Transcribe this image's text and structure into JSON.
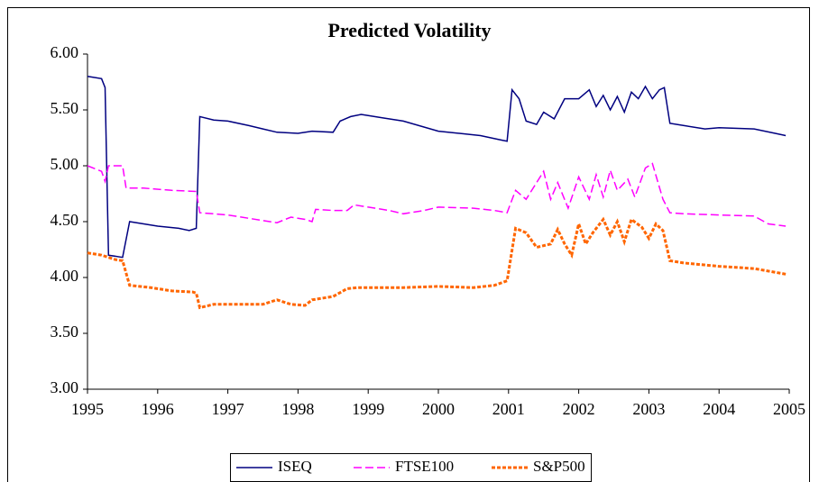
{
  "chart_data": {
    "type": "line",
    "title": "Predicted Volatility",
    "xlim": [
      1995,
      2005
    ],
    "xticks": [
      1995,
      1996,
      1997,
      1998,
      1999,
      2000,
      2001,
      2002,
      2003,
      2004,
      2005
    ],
    "ylim": [
      3,
      6
    ],
    "yticks": [
      {
        "value": 3,
        "label": "3.00"
      },
      {
        "value": 3.5,
        "label": "3.50"
      },
      {
        "value": 4,
        "label": "4.00"
      },
      {
        "value": 4.5,
        "label": "4.50"
      },
      {
        "value": 5,
        "label": "5.00"
      },
      {
        "value": 5.5,
        "label": "5.50"
      },
      {
        "value": 6,
        "label": "6.00"
      }
    ],
    "legend": "bottom",
    "series": [
      {
        "name": "ISEQ",
        "color": "#000080",
        "dash": "solid",
        "x": [
          1995.0,
          1995.2,
          1995.25,
          1995.3,
          1995.5,
          1995.6,
          1996.0,
          1996.3,
          1996.45,
          1996.55,
          1996.6,
          1996.8,
          1997.0,
          1997.3,
          1997.5,
          1997.7,
          1998.0,
          1998.2,
          1998.5,
          1998.6,
          1998.75,
          1998.9,
          1999.2,
          1999.5,
          2000.0,
          2000.3,
          2000.6,
          2000.9,
          2000.98,
          2001.05,
          2001.15,
          2001.25,
          2001.4,
          2001.5,
          2001.65,
          2001.8,
          2002.0,
          2002.15,
          2002.25,
          2002.35,
          2002.45,
          2002.55,
          2002.65,
          2002.75,
          2002.85,
          2002.95,
          2003.05,
          2003.15,
          2003.22,
          2003.3,
          2003.5,
          2003.8,
          2004.0,
          2004.5,
          2004.8,
          2004.95
        ],
        "values": [
          5.8,
          5.78,
          5.7,
          4.2,
          4.18,
          4.5,
          4.46,
          4.44,
          4.42,
          4.44,
          5.44,
          5.41,
          5.4,
          5.36,
          5.33,
          5.3,
          5.29,
          5.31,
          5.3,
          5.4,
          5.44,
          5.46,
          5.43,
          5.4,
          5.31,
          5.29,
          5.27,
          5.23,
          5.22,
          5.68,
          5.6,
          5.4,
          5.37,
          5.48,
          5.42,
          5.6,
          5.6,
          5.68,
          5.53,
          5.63,
          5.5,
          5.62,
          5.48,
          5.66,
          5.6,
          5.71,
          5.6,
          5.68,
          5.7,
          5.38,
          5.36,
          5.33,
          5.34,
          5.33,
          5.29,
          5.27
        ]
      },
      {
        "name": "FTSE100",
        "color": "#ff00ff",
        "dash": "dashed",
        "x": [
          1995.0,
          1995.2,
          1995.25,
          1995.3,
          1995.5,
          1995.55,
          1995.8,
          1996.2,
          1996.55,
          1996.6,
          1997.0,
          1997.5,
          1997.7,
          1997.9,
          1998.1,
          1998.2,
          1998.25,
          1998.5,
          1998.7,
          1998.8,
          1999.0,
          1999.3,
          1999.5,
          1999.8,
          2000.0,
          2000.5,
          2000.8,
          2000.98,
          2001.1,
          2001.25,
          2001.5,
          2001.6,
          2001.7,
          2001.85,
          2002.0,
          2002.15,
          2002.25,
          2002.35,
          2002.45,
          2002.55,
          2002.7,
          2002.8,
          2002.95,
          2003.05,
          2003.2,
          2003.3,
          2003.5,
          2004.0,
          2004.5,
          2004.7,
          2004.95
        ],
        "values": [
          5.0,
          4.95,
          4.86,
          5.0,
          5.0,
          4.8,
          4.8,
          4.78,
          4.77,
          4.58,
          4.56,
          4.51,
          4.49,
          4.54,
          4.52,
          4.5,
          4.61,
          4.6,
          4.6,
          4.65,
          4.63,
          4.6,
          4.57,
          4.6,
          4.63,
          4.62,
          4.6,
          4.58,
          4.78,
          4.7,
          4.95,
          4.7,
          4.85,
          4.62,
          4.9,
          4.7,
          4.92,
          4.72,
          4.96,
          4.78,
          4.88,
          4.72,
          4.98,
          5.02,
          4.7,
          4.58,
          4.57,
          4.56,
          4.55,
          4.48,
          4.46
        ]
      },
      {
        "name": "S&P500",
        "color": "#ff6600",
        "dash": "dotted",
        "x": [
          1995.0,
          1995.2,
          1995.4,
          1995.5,
          1995.6,
          1995.9,
          1996.2,
          1996.5,
          1996.55,
          1996.6,
          1996.8,
          1997.0,
          1997.5,
          1997.7,
          1997.9,
          1998.1,
          1998.2,
          1998.5,
          1998.7,
          1998.85,
          1999.5,
          2000.0,
          2000.5,
          2000.8,
          2000.98,
          2001.1,
          2001.25,
          2001.4,
          2001.6,
          2001.7,
          2001.8,
          2001.9,
          2002.0,
          2002.1,
          2002.2,
          2002.35,
          2002.45,
          2002.55,
          2002.65,
          2002.75,
          2002.9,
          2003.0,
          2003.1,
          2003.2,
          2003.3,
          2003.5,
          2004.0,
          2004.5,
          2004.95
        ],
        "values": [
          4.22,
          4.2,
          4.16,
          4.15,
          3.93,
          3.91,
          3.88,
          3.87,
          3.86,
          3.73,
          3.76,
          3.76,
          3.76,
          3.8,
          3.76,
          3.75,
          3.8,
          3.83,
          3.9,
          3.91,
          3.91,
          3.92,
          3.91,
          3.93,
          3.97,
          4.44,
          4.4,
          4.27,
          4.3,
          4.43,
          4.3,
          4.2,
          4.48,
          4.3,
          4.4,
          4.52,
          4.38,
          4.5,
          4.32,
          4.52,
          4.45,
          4.35,
          4.48,
          4.42,
          4.15,
          4.13,
          4.1,
          4.08,
          4.03
        ]
      }
    ]
  }
}
